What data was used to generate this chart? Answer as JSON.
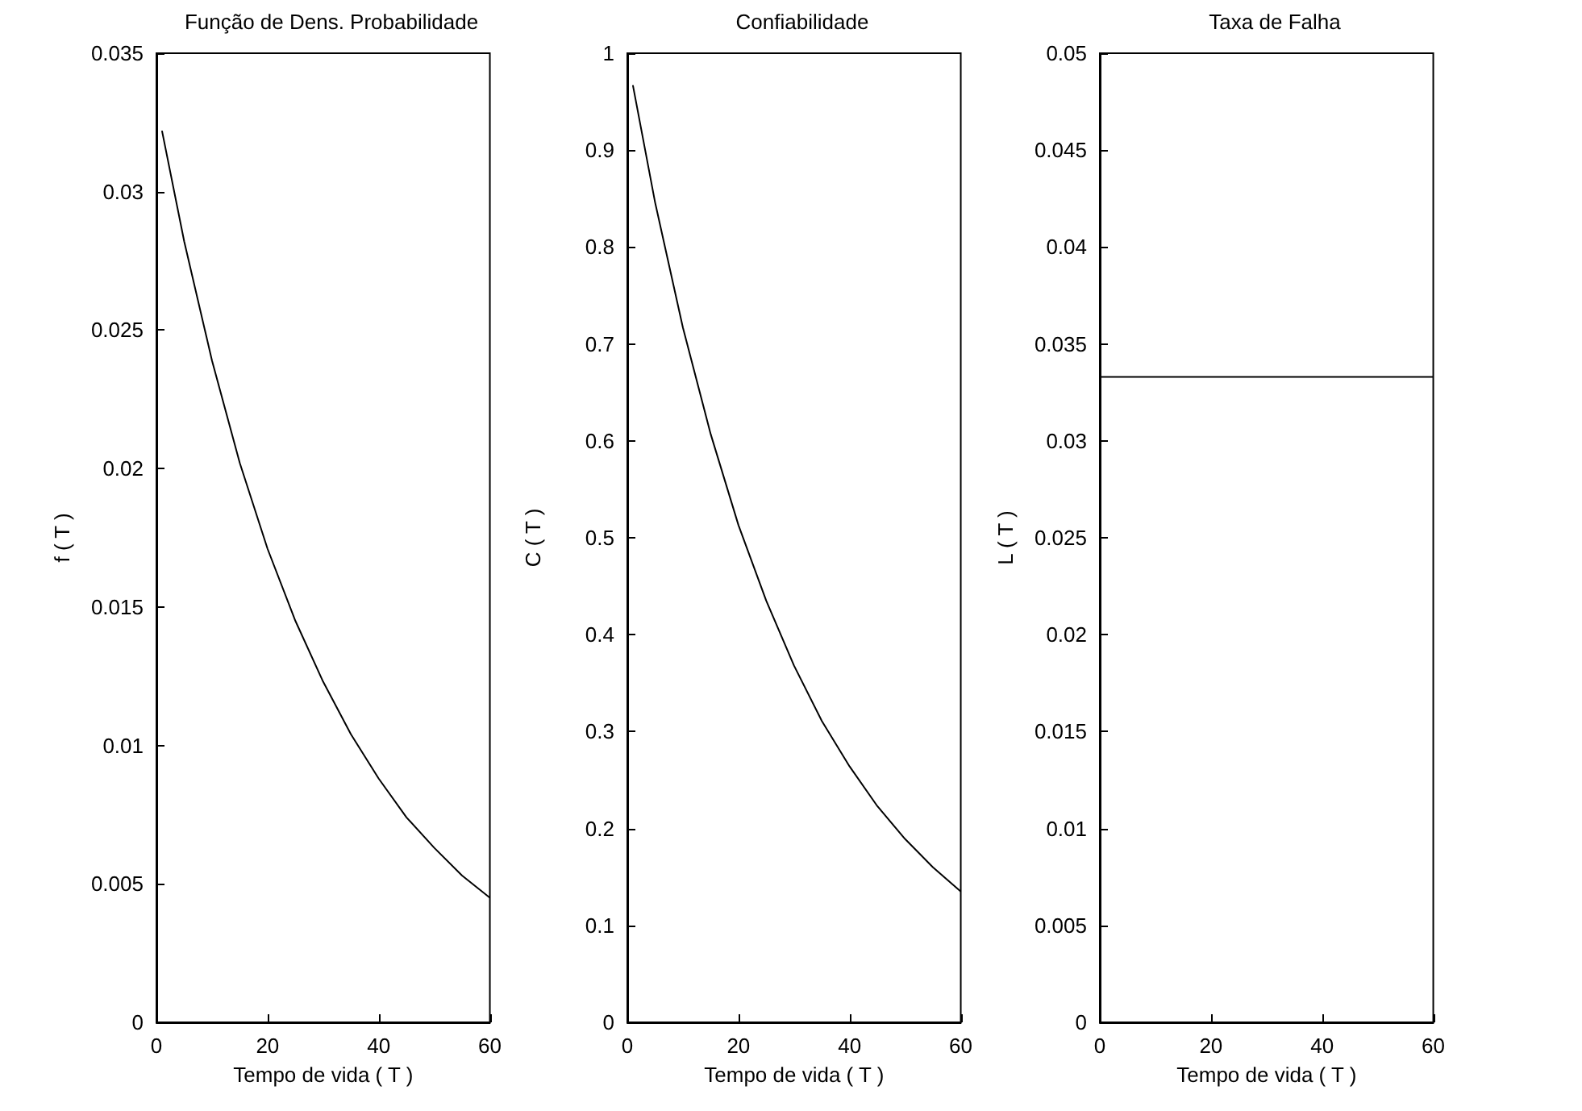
{
  "chart_data": [
    {
      "type": "line",
      "title": "Função de Dens. Probabilidade",
      "xlabel": "Tempo de vida ( T )",
      "ylabel": "f ( T )",
      "color": "#000000",
      "x": [
        1,
        5,
        10,
        15,
        20,
        25,
        30,
        35,
        40,
        45,
        50,
        55,
        60
      ],
      "values": [
        0.0322,
        0.0282,
        0.0239,
        0.0202,
        0.0171,
        0.0145,
        0.0123,
        0.0104,
        0.0088,
        0.0074,
        0.0063,
        0.0053,
        0.0045
      ],
      "xlim": [
        0,
        60
      ],
      "xticks": [
        0,
        20,
        40,
        60
      ],
      "ylim": [
        0,
        0.035
      ],
      "yticks": [
        0,
        0.005,
        0.01,
        0.015,
        0.02,
        0.025,
        0.03,
        0.035
      ]
    },
    {
      "type": "line",
      "title": "Confiabilidade",
      "xlabel": "Tempo de vida ( T )",
      "ylabel": "C ( T )",
      "color": "#000000",
      "x": [
        1,
        5,
        10,
        15,
        20,
        25,
        30,
        35,
        40,
        45,
        50,
        55,
        60
      ],
      "values": [
        0.967,
        0.846,
        0.717,
        0.607,
        0.513,
        0.435,
        0.368,
        0.311,
        0.264,
        0.223,
        0.189,
        0.16,
        0.135
      ],
      "xlim": [
        0,
        60
      ],
      "xticks": [
        0,
        20,
        40,
        60
      ],
      "ylim": [
        0,
        1
      ],
      "yticks": [
        0,
        0.1,
        0.2,
        0.3,
        0.4,
        0.5,
        0.6,
        0.7,
        0.8,
        0.9,
        1
      ]
    },
    {
      "type": "line",
      "title": "Taxa de Falha",
      "xlabel": "Tempo de vida ( T )",
      "ylabel": "L ( T )",
      "color": "#000000",
      "x": [
        0,
        60
      ],
      "values": [
        0.0333,
        0.0333
      ],
      "xlim": [
        0,
        60
      ],
      "xticks": [
        0,
        20,
        40,
        60
      ],
      "ylim": [
        0,
        0.05
      ],
      "yticks": [
        0,
        0.005,
        0.01,
        0.015,
        0.02,
        0.025,
        0.03,
        0.035,
        0.04,
        0.045,
        0.05
      ]
    }
  ]
}
